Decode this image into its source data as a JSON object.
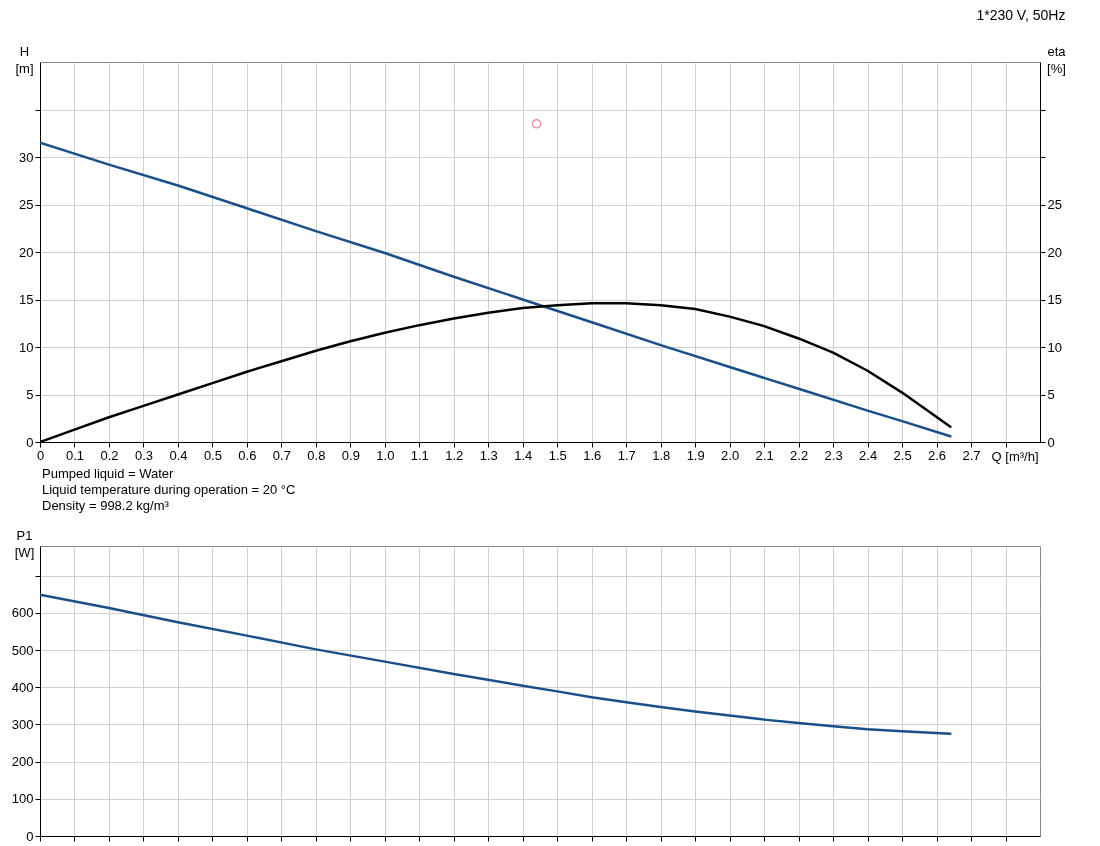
{
  "chart_data": [
    {
      "type": "line",
      "title": "1*230 V, 50Hz",
      "xlabel": "Q [m³/h]",
      "ylabel": "H [m]",
      "y2label": "eta [%]",
      "grid": true,
      "xlim": [
        0,
        2.9
      ],
      "xticks": [
        0,
        0.1,
        0.2,
        0.3,
        0.4,
        0.5,
        0.6,
        0.7,
        0.8,
        0.9,
        {
          "value": 1,
          "label": "1.0"
        },
        1.1,
        1.2,
        1.3,
        1.4,
        1.5,
        1.6,
        1.7,
        1.8,
        1.9,
        {
          "value": 2,
          "label": "2.0"
        },
        2.1,
        2.2,
        2.3,
        2.4,
        2.5,
        2.6,
        2.7,
        {
          "value": 2.8,
          "label": null
        }
      ],
      "ylim": [
        0,
        40
      ],
      "yticks": [
        0,
        5,
        10,
        15,
        20,
        25,
        30,
        {
          "value": 35,
          "label": null
        }
      ],
      "y2lim": [
        0,
        40
      ],
      "y2ticks": [
        0,
        5,
        10,
        15,
        20,
        25,
        {
          "value": 30,
          "label": null
        },
        {
          "value": 35,
          "label": null
        }
      ],
      "annotations": [
        "Pumped liquid = Water",
        "Liquid temperature during operation = 20 °C",
        "Density = 998.2 kg/m³"
      ],
      "series": [
        {
          "color": "#1a4f8a",
          "x": [
            0,
            0.2,
            0.4,
            0.6,
            0.8,
            1.0,
            1.2,
            1.4,
            1.6,
            1.8,
            2.0,
            2.2,
            2.4,
            2.5,
            2.64
          ],
          "values": [
            31.5,
            29.2,
            27.0,
            24.6,
            22.2,
            19.9,
            17.4,
            15.0,
            12.6,
            10.2,
            7.9,
            5.6,
            3.3,
            2.2,
            0.6
          ]
        },
        {
          "color": "#000000",
          "axis": "y2",
          "x": [
            0,
            0.1,
            0.2,
            0.3,
            0.4,
            0.5,
            0.6,
            0.7,
            0.8,
            0.9,
            1.0,
            1.1,
            1.2,
            1.3,
            1.4,
            1.5,
            1.6,
            1.7,
            1.8,
            1.9,
            2.0,
            2.1,
            2.2,
            2.3,
            2.4,
            2.5,
            2.64
          ],
          "values": [
            0,
            1.3,
            2.6,
            3.8,
            5.0,
            6.2,
            7.4,
            8.5,
            9.6,
            10.6,
            11.5,
            12.3,
            13.0,
            13.6,
            14.1,
            14.4,
            14.6,
            14.6,
            14.4,
            14.0,
            13.2,
            12.2,
            10.9,
            9.4,
            7.5,
            5.2,
            1.6
          ]
        },
        {
          "type": "scatter",
          "marker": "circle",
          "color": "#ff5a5a",
          "x": [
            1.44
          ],
          "values": [
            33.5
          ]
        }
      ]
    },
    {
      "type": "line",
      "ylabel": "P1 [W]",
      "grid": true,
      "tick_labels": "y",
      "xlim": [
        0,
        2.9
      ],
      "xticks": [
        0,
        0.1,
        0.2,
        0.3,
        0.4,
        0.5,
        0.6,
        0.7,
        0.8,
        0.9,
        1.0,
        1.1,
        1.2,
        1.3,
        1.4,
        1.5,
        1.6,
        1.7,
        1.8,
        1.9,
        2.0,
        2.1,
        2.2,
        2.3,
        2.4,
        2.5,
        2.6,
        2.7,
        2.8
      ],
      "ylim": [
        0,
        780
      ],
      "yticks": [
        0,
        100,
        200,
        300,
        400,
        500,
        600,
        {
          "value": 700,
          "label": null
        }
      ],
      "series": [
        {
          "color": "#1a4f8a",
          "x": [
            0,
            0.2,
            0.4,
            0.6,
            0.8,
            1.0,
            1.2,
            1.4,
            1.5,
            1.6,
            1.7,
            1.8,
            1.9,
            2.0,
            2.1,
            2.2,
            2.3,
            2.4,
            2.5,
            2.64
          ],
          "values": [
            649,
            613,
            575,
            539,
            502,
            469,
            436,
            404,
            389,
            373,
            360,
            347,
            335,
            324,
            313,
            304,
            295,
            287,
            282,
            275
          ]
        }
      ]
    }
  ]
}
